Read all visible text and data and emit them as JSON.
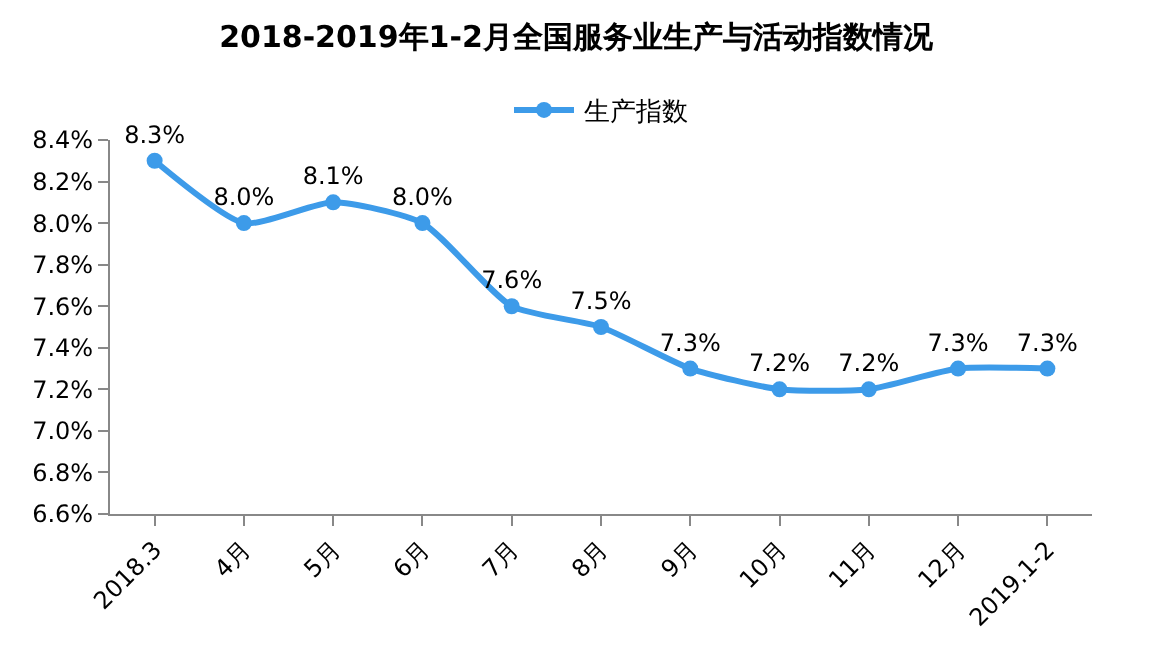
{
  "chart_data": {
    "type": "line",
    "title": "2018-2019年1-2月全国服务业生产与活动指数情况",
    "categories": [
      "2018.3",
      "4月",
      "5月",
      "6月",
      "7月",
      "8月",
      "9月",
      "10月",
      "11月",
      "12月",
      "2019.1-2"
    ],
    "series": [
      {
        "name": "生产指数",
        "color": "#3d9be9",
        "values": [
          8.3,
          8.0,
          8.1,
          8.0,
          7.6,
          7.5,
          7.3,
          7.2,
          7.2,
          7.3,
          7.3
        ],
        "value_labels": [
          "8.3%",
          "8.0%",
          "8.1%",
          "8.0%",
          "7.6%",
          "7.5%",
          "7.3%",
          "7.2%",
          "7.2%",
          "7.3%",
          "7.3%"
        ]
      }
    ],
    "ylim": [
      6.6,
      8.4
    ],
    "yticks": [
      {
        "value": 6.6,
        "label": "6.6%"
      },
      {
        "value": 6.8,
        "label": "6.8%"
      },
      {
        "value": 7.0,
        "label": "7.0%"
      },
      {
        "value": 7.2,
        "label": "7.2%"
      },
      {
        "value": 7.4,
        "label": "7.4%"
      },
      {
        "value": 7.6,
        "label": "7.6%"
      },
      {
        "value": 7.8,
        "label": "7.8%"
      },
      {
        "value": 8.0,
        "label": "8.0%"
      },
      {
        "value": 8.2,
        "label": "8.2%"
      },
      {
        "value": 8.4,
        "label": "8.4%"
      }
    ],
    "legend": "top",
    "marker": "circle",
    "line_style": "solid"
  }
}
